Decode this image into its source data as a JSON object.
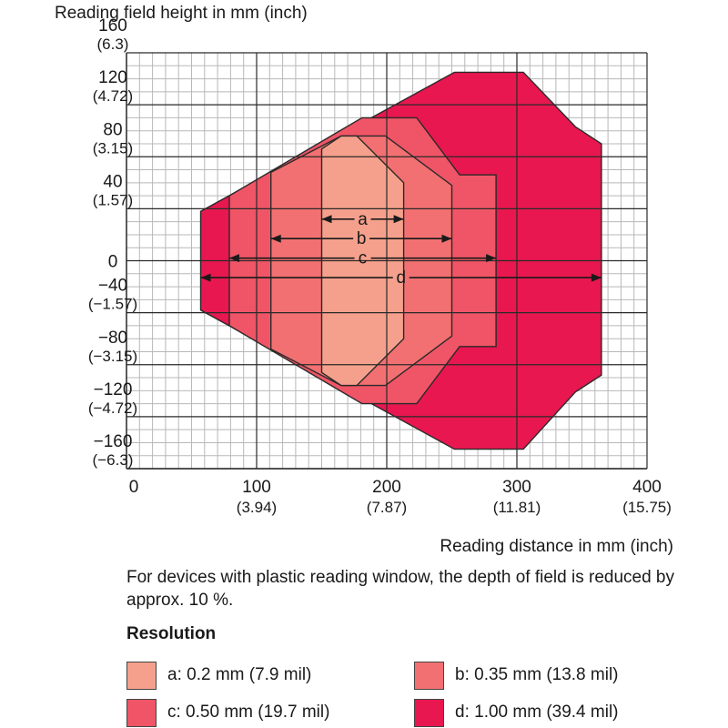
{
  "chart_data": {
    "type": "area",
    "y_title": "Reading field height in mm (inch)",
    "x_title": "Reading distance in mm (inch)",
    "xlim": [
      0,
      400
    ],
    "ylim": [
      -160,
      160
    ],
    "grid": true,
    "x_ticks": [
      {
        "value": 0,
        "label": "0",
        "sub": ""
      },
      {
        "value": 100,
        "label": "100",
        "sub": "(3.94)"
      },
      {
        "value": 200,
        "label": "200",
        "sub": "(7.87)"
      },
      {
        "value": 300,
        "label": "300",
        "sub": "(11.81)"
      },
      {
        "value": 400,
        "label": "400",
        "sub": "(15.75)"
      }
    ],
    "y_ticks": [
      {
        "value": 160,
        "label": "160",
        "sub": "(6.3)"
      },
      {
        "value": 120,
        "label": "120",
        "sub": "(4.72)"
      },
      {
        "value": 80,
        "label": "80",
        "sub": "(3.15)"
      },
      {
        "value": 40,
        "label": "40",
        "sub": "(1.57)"
      },
      {
        "value": 0,
        "label": "0",
        "sub": ""
      },
      {
        "value": -40,
        "label": "−40",
        "sub": "(−1.57)"
      },
      {
        "value": -80,
        "label": "−80",
        "sub": "(−3.15)"
      },
      {
        "value": -120,
        "label": "−120",
        "sub": "(−4.72)"
      },
      {
        "value": -160,
        "label": "−160",
        "sub": "(−6.3)"
      }
    ],
    "series": [
      {
        "name": "d: 1.00 mm (39.4 mil)",
        "marker": "d",
        "color": "#e8174f",
        "polygon": [
          [
            57,
            38
          ],
          [
            252,
            145
          ],
          [
            305,
            145
          ],
          [
            345,
            103
          ],
          [
            365,
            90
          ],
          [
            365,
            -88
          ],
          [
            345,
            -101
          ],
          [
            305,
            -145
          ],
          [
            252,
            -145
          ],
          [
            57,
            -38
          ]
        ],
        "range": [
          57,
          365
        ],
        "arrow_y": -13
      },
      {
        "name": "c: 0.50 mm (19.7 mil)",
        "marker": "c",
        "color": "#ef5566",
        "polygon": [
          [
            79,
            50
          ],
          [
            181,
            110
          ],
          [
            223,
            110
          ],
          [
            256,
            66
          ],
          [
            284,
            66
          ],
          [
            284,
            -66
          ],
          [
            256,
            -66
          ],
          [
            223,
            -110
          ],
          [
            181,
            -110
          ],
          [
            79,
            -50
          ]
        ],
        "range": [
          79,
          284
        ],
        "arrow_y": 2
      },
      {
        "name": "b: 0.35 mm (13.8 mil)",
        "marker": "b",
        "color": "#f27071",
        "polygon": [
          [
            111,
            68
          ],
          [
            165,
            96
          ],
          [
            199,
            96
          ],
          [
            250,
            58
          ],
          [
            250,
            -58
          ],
          [
            199,
            -96
          ],
          [
            165,
            -96
          ],
          [
            111,
            -68
          ]
        ],
        "range": [
          111,
          250
        ],
        "arrow_y": 17
      },
      {
        "name": "a: 0.2 mm (7.9 mil)",
        "marker": "a",
        "color": "#f5a08c",
        "polygon": [
          [
            150,
            86
          ],
          [
            165,
            96
          ],
          [
            177,
            96
          ],
          [
            213,
            60
          ],
          [
            213,
            -60
          ],
          [
            177,
            -96
          ],
          [
            165,
            -96
          ],
          [
            150,
            -86
          ]
        ],
        "range": [
          150,
          213
        ],
        "arrow_y": 32
      }
    ]
  },
  "note": "For devices with plastic reading window, the depth of field is reduced by approx. 10 %.",
  "legend": {
    "title": "Resolution",
    "items": [
      {
        "label": "a: 0.2 mm (7.9 mil)",
        "color": "#f5a08c"
      },
      {
        "label": "b: 0.35 mm (13.8 mil)",
        "color": "#f27071"
      },
      {
        "label": "c: 0.50 mm (19.7 mil)",
        "color": "#ef5566"
      },
      {
        "label": "d: 1.00 mm (39.4 mil)",
        "color": "#e8174f"
      }
    ]
  }
}
